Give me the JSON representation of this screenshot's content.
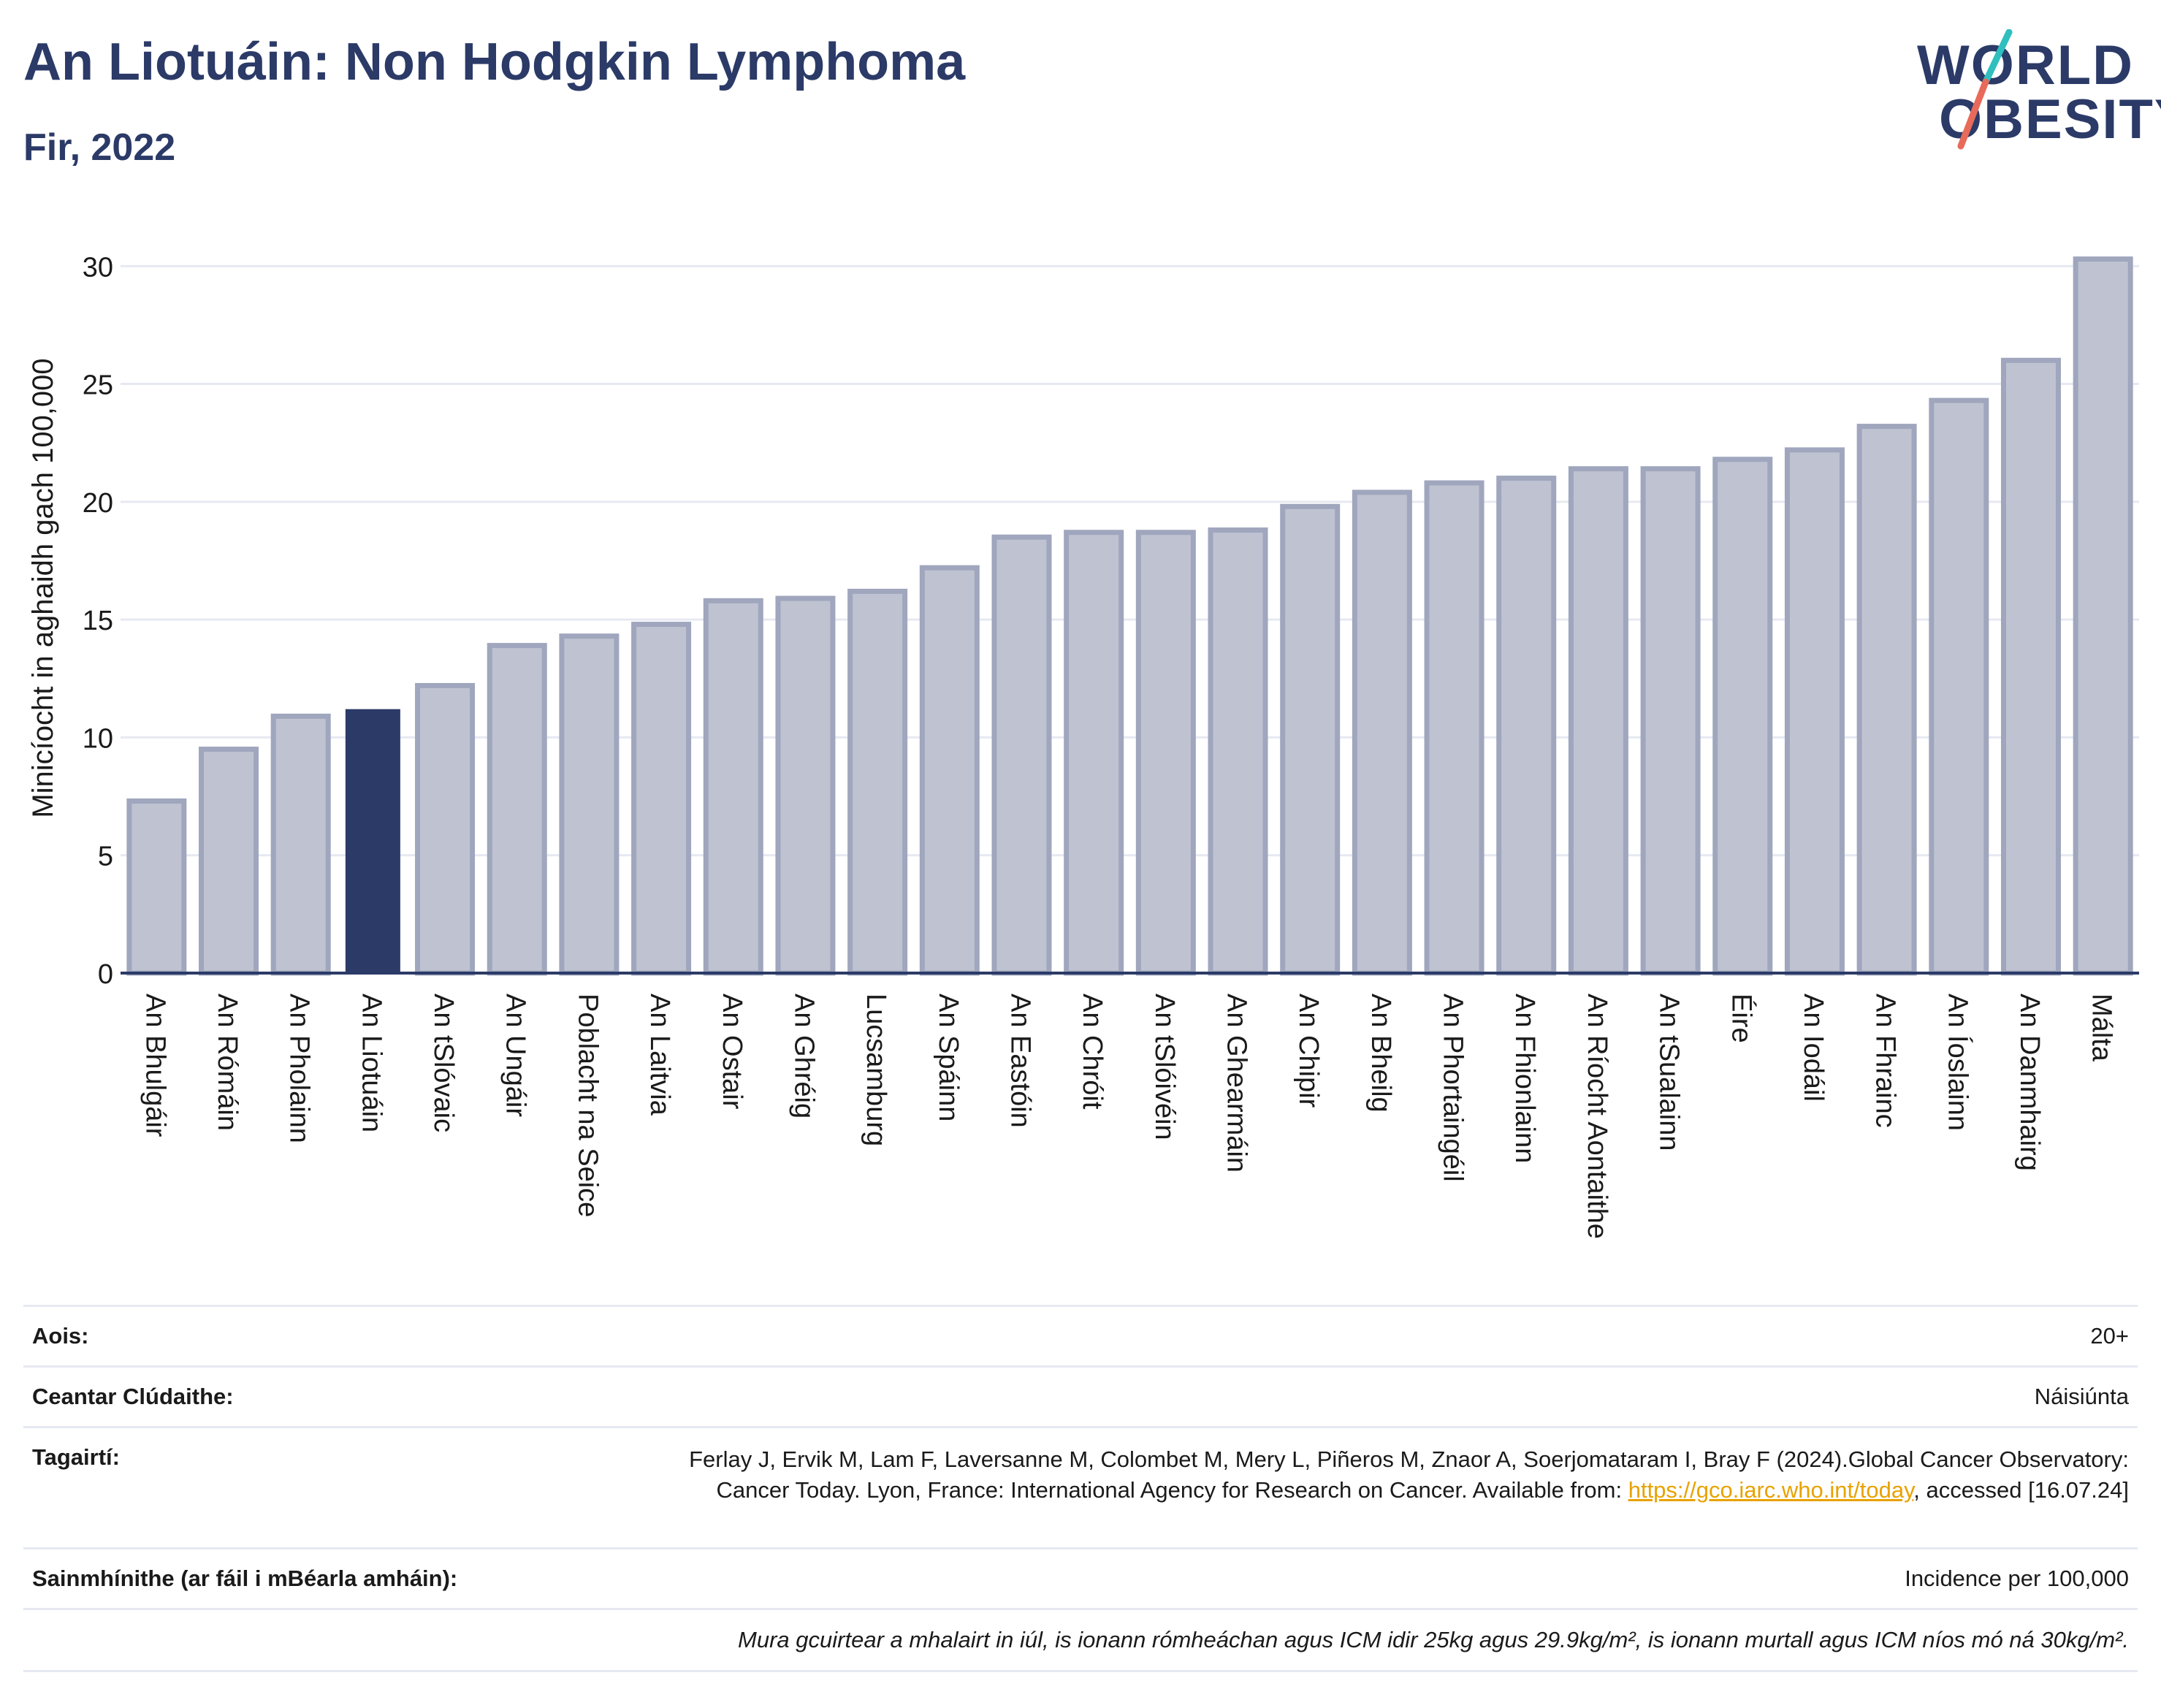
{
  "header": {
    "title": "An Liotuáin: Non Hodgkin Lymphoma",
    "subtitle": "Fir, 2022"
  },
  "logo": {
    "line1": "WORLD",
    "line2": "OBESITY"
  },
  "colors": {
    "highlight": "#2b3a67",
    "bar_fill": "#bfc3d1",
    "bar_stroke": "#9fa6bd",
    "grid": "#e6e9f2",
    "link": "#e8a200"
  },
  "chart_data": {
    "type": "bar",
    "ylabel": "Minicíocht in aghaidh gach 100,000",
    "ylim": [
      0,
      31
    ],
    "yticks": [
      0,
      5,
      10,
      15,
      20,
      25,
      30
    ],
    "grid": true,
    "highlight": "An Liotuáin",
    "categories": [
      "An Bhulgáir",
      "An Rómáin",
      "An Pholainn",
      "An Liotuáin",
      "An tSlóvaic",
      "An Ungáir",
      "Poblacht na Seice",
      "An Laitvia",
      "An Ostair",
      "An Ghréig",
      "Lucsamburg",
      "An Spáinn",
      "An Eastóin",
      "An Chróit",
      "An tSlóivéin",
      "An Ghearmáin",
      "An Chipir",
      "An Bheilg",
      "An Phortaingéil",
      "An Fhionlainn",
      "An Ríocht Aontaithe",
      "An tSualainn",
      "Éire",
      "An Iodáil",
      "An Fhrainc",
      "An Íoslainn",
      "An Danmhairg",
      "Málta"
    ],
    "values": [
      7.3,
      9.5,
      10.9,
      11.2,
      12.2,
      13.9,
      14.3,
      14.8,
      15.8,
      15.9,
      16.2,
      17.2,
      18.5,
      18.7,
      18.7,
      18.8,
      19.8,
      20.4,
      20.8,
      21.0,
      21.4,
      21.4,
      21.8,
      22.2,
      23.2,
      24.3,
      26.0,
      30.3
    ]
  },
  "meta": {
    "age_label": "Aois:",
    "age_value": "20+",
    "coverage_label": "Ceantar Clúdaithe:",
    "coverage_value": "Náisiúnta",
    "refs_label": "Tagairtí:",
    "refs_text": "Ferlay J, Ervik M, Lam F, Laversanne M, Colombet M, Mery L, Piñeros M, Znaor A, Soerjomataram I, Bray F (2024).Global Cancer Observatory: Cancer Today. Lyon, France: International Agency for Research on Cancer. Available from: ",
    "refs_link": "https://gco.iarc.who.int/today",
    "refs_tail": ", accessed [16.07.24]",
    "defs_label": "Sainmhínithe (ar fáil i mBéarla amháin):",
    "defs_value": "Incidence per 100,000",
    "note": "Mura gcuirtear a mhalairt in iúl, is ionann rómheáchan agus ICM idir 25kg agus 29.9kg/m², is ionann murtall agus ICM níos mó ná 30kg/m²."
  }
}
